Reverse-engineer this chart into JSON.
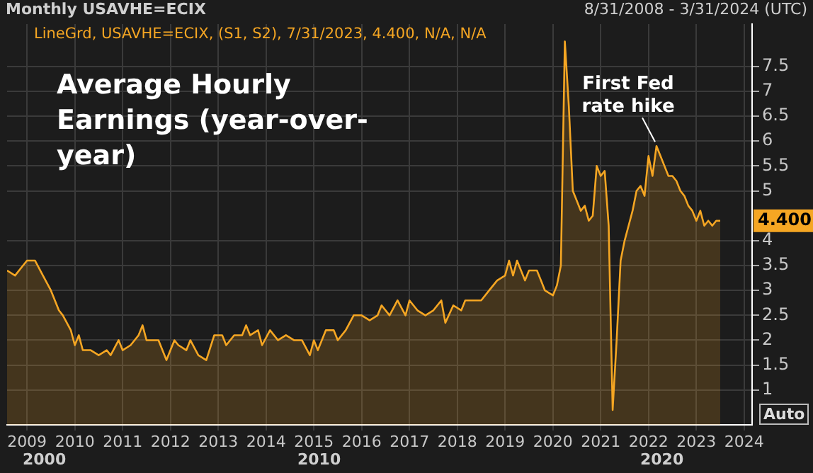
{
  "chart_data": {
    "type": "area",
    "title": "Average Hourly Earnings (year-over-year)",
    "x": [
      "2008-08",
      "2008-10",
      "2008-12",
      "2009-01",
      "2009-03",
      "2009-05",
      "2009-07",
      "2009-09",
      "2009-10",
      "2009-12",
      "2010-01",
      "2010-02",
      "2010-03",
      "2010-05",
      "2010-07",
      "2010-09",
      "2010-10",
      "2010-12",
      "2011-01",
      "2011-03",
      "2011-05",
      "2011-06",
      "2011-07",
      "2011-10",
      "2011-12",
      "2012-02",
      "2012-03",
      "2012-05",
      "2012-06",
      "2012-08",
      "2012-10",
      "2012-12",
      "2013-02",
      "2013-03",
      "2013-05",
      "2013-07",
      "2013-08",
      "2013-09",
      "2013-11",
      "2013-12",
      "2014-02",
      "2014-04",
      "2014-06",
      "2014-08",
      "2014-10",
      "2014-12",
      "2015-01",
      "2015-02",
      "2015-04",
      "2015-06",
      "2015-07",
      "2015-09",
      "2015-11",
      "2016-01",
      "2016-03",
      "2016-05",
      "2016-06",
      "2016-08",
      "2016-10",
      "2016-12",
      "2017-01",
      "2017-03",
      "2017-05",
      "2017-07",
      "2017-09",
      "2017-10",
      "2017-12",
      "2018-02",
      "2018-03",
      "2018-05",
      "2018-07",
      "2018-09",
      "2018-11",
      "2019-01",
      "2019-02",
      "2019-03",
      "2019-04",
      "2019-06",
      "2019-07",
      "2019-09",
      "2019-10",
      "2019-11",
      "2020-01",
      "2020-02",
      "2020-03",
      "2020-04",
      "2020-05",
      "2020-06",
      "2020-07",
      "2020-08",
      "2020-09",
      "2020-10",
      "2020-11",
      "2020-12",
      "2021-01",
      "2021-02",
      "2021-03",
      "2021-04",
      "2021-05",
      "2021-06",
      "2021-07",
      "2021-08",
      "2021-09",
      "2021-10",
      "2021-11",
      "2021-12",
      "2022-01",
      "2022-02",
      "2022-03",
      "2022-04",
      "2022-05",
      "2022-06",
      "2022-07",
      "2022-08",
      "2022-09",
      "2022-10",
      "2022-11",
      "2022-12",
      "2023-01",
      "2023-02",
      "2023-03",
      "2023-04",
      "2023-05",
      "2023-06",
      "2023-07"
    ],
    "series": [
      {
        "color": "#f5a623",
        "values": [
          3.4,
          3.3,
          3.5,
          3.6,
          3.6,
          3.3,
          3.0,
          2.6,
          2.5,
          2.2,
          1.9,
          2.1,
          1.8,
          1.8,
          1.7,
          1.8,
          1.7,
          2.0,
          1.8,
          1.9,
          2.1,
          2.3,
          2.0,
          2.0,
          1.6,
          2.0,
          1.9,
          1.8,
          2.0,
          1.7,
          1.6,
          2.1,
          2.1,
          1.9,
          2.1,
          2.1,
          2.3,
          2.1,
          2.2,
          1.9,
          2.2,
          2.0,
          2.1,
          2.0,
          2.0,
          1.7,
          2.0,
          1.8,
          2.2,
          2.2,
          2.0,
          2.2,
          2.5,
          2.5,
          2.4,
          2.5,
          2.7,
          2.5,
          2.8,
          2.5,
          2.8,
          2.6,
          2.5,
          2.6,
          2.8,
          2.35,
          2.7,
          2.6,
          2.8,
          2.8,
          2.8,
          3.0,
          3.2,
          3.3,
          3.6,
          3.3,
          3.6,
          3.2,
          3.4,
          3.4,
          3.2,
          3.0,
          2.9,
          3.1,
          3.5,
          8.0,
          6.7,
          5.0,
          4.8,
          4.6,
          4.7,
          4.4,
          4.5,
          5.5,
          5.3,
          5.4,
          4.3,
          0.6,
          2.0,
          3.6,
          4.0,
          4.3,
          4.6,
          5.0,
          5.1,
          4.9,
          5.7,
          5.3,
          5.9,
          5.7,
          5.5,
          5.3,
          5.3,
          5.2,
          5.0,
          4.9,
          4.7,
          4.6,
          4.4,
          4.6,
          4.3,
          4.4,
          4.3,
          4.4,
          4.4
        ]
      }
    ],
    "xlim": [
      "2008-08",
      "2024-03"
    ],
    "xticks": [
      "2009",
      "2010",
      "2011",
      "2012",
      "2013",
      "2014",
      "2015",
      "2016",
      "2017",
      "2018",
      "2019",
      "2020",
      "2021",
      "2022",
      "2023",
      "2024"
    ],
    "ylim": [
      0.3,
      8.35
    ],
    "yticks": [
      1,
      1.5,
      2,
      2.5,
      3,
      3.5,
      4,
      5,
      5.5,
      6,
      6.5,
      7,
      7.5
    ],
    "grid": true,
    "annotations": [
      "Monthly USAVHE=ECIX",
      "8/31/2008 - 3/31/2024 (UTC)",
      "LineGrd, USAVHE=ECIX, (S1, S2), 7/31/2023, 4.400, N/A, N/A",
      {
        "text": "First Fed rate hike",
        "x": "2022-03",
        "y": 5.9
      },
      {
        "text": "4.400",
        "x": "2023-07",
        "y": 4.4
      },
      "2000",
      "2010",
      "2020",
      "Auto"
    ]
  }
}
